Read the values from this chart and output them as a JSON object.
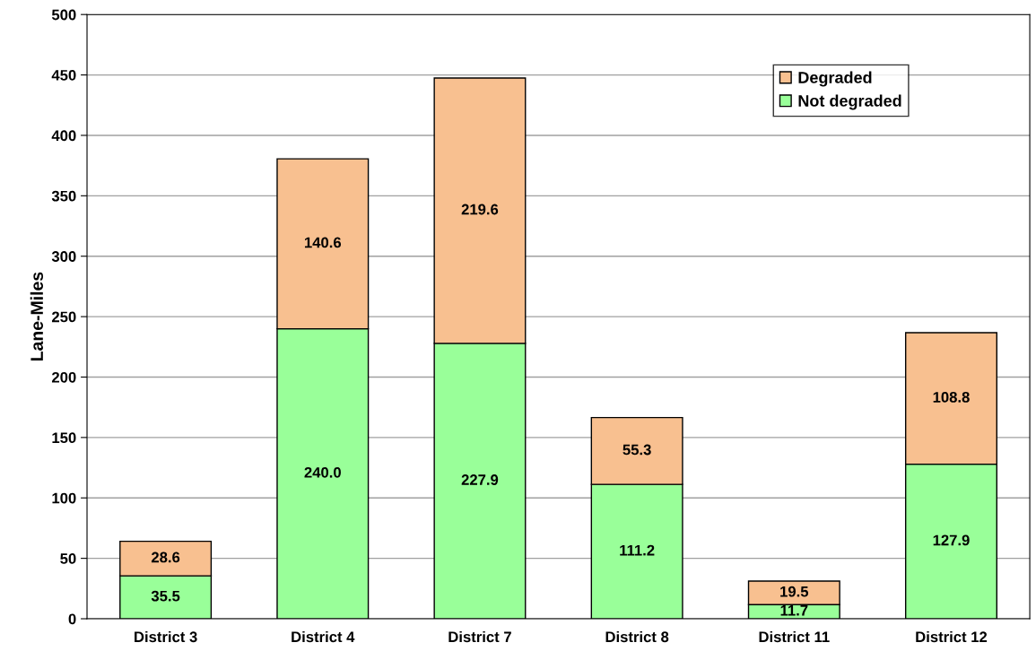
{
  "chart_data": {
    "type": "bar",
    "stacked": true,
    "ylabel": "Lane-Miles",
    "categories": [
      "District 3",
      "District 4",
      "District 7",
      "District 8",
      "District 11",
      "District 12"
    ],
    "series": [
      {
        "name": "Not degraded",
        "color": "#99ff99",
        "values": [
          35.5,
          240.0,
          227.9,
          111.2,
          11.7,
          127.9
        ],
        "value_labels": [
          "35.5",
          "240.0",
          "227.9",
          "111.2",
          "11.7",
          "127.9"
        ]
      },
      {
        "name": "Degraded",
        "color": "#f8c090",
        "values": [
          28.6,
          140.6,
          219.6,
          55.3,
          19.5,
          108.8
        ],
        "value_labels": [
          "28.6",
          "140.6",
          "219.6",
          "55.3",
          "19.5",
          "108.8"
        ]
      }
    ],
    "ylim": [
      0,
      500
    ],
    "yticks": [
      0,
      50,
      100,
      150,
      200,
      250,
      300,
      350,
      400,
      450,
      500
    ],
    "grid": "y",
    "legend": "top right"
  }
}
